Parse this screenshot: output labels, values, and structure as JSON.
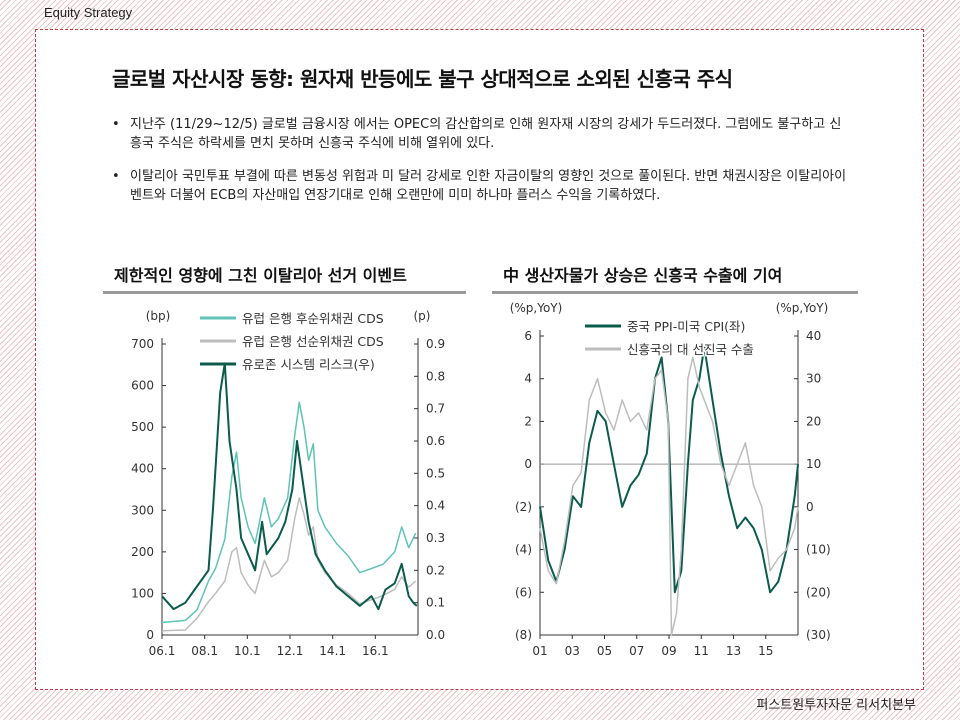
{
  "header": {
    "section_label": "Equity Strategy"
  },
  "page": {
    "title": "글로벌 자산시장 동향: 원자재 반등에도 불구 상대적으로 소외된 신흥국 주식",
    "bullets": [
      {
        "marker": "•",
        "text": "지난주 (11/29~12/5) 글로벌 금융시장 에서는 OPEC의 감산합의로 인해 원자재 시장의 강세가 두드러졌다. 그럼에도 불구하고 신흥국 주식은 하락세를 면치 못하며 신흥국 주식에 비해 열위에 있다."
      },
      {
        "marker": "•",
        "text": "이탈리아 국민투표 부결에 따른 변동성 위험과 미 달러 강세로 인한 자금이탈의 영향인 것으로 풀이된다. 반면 채권시장은 이탈리아이벤트와 더불어 ECB의 자산매입 연장기대로 인해 오랜만에 미미 하나마 플러스 수익을 기록하였다."
      }
    ]
  },
  "footer": {
    "source_label": "퍼스트원투자자문 리서치본부"
  },
  "chart_data": [
    {
      "type": "line",
      "title": "제한적인 영향에 그친 이탈리아 선거 이벤트",
      "left_unit": "(bp)",
      "right_unit": "(p)",
      "x_ticks": [
        "06.1",
        "08.1",
        "10.1",
        "12.1",
        "14.1",
        "16.1"
      ],
      "x_range": [
        2006.0,
        2017.0
      ],
      "ylim_left": [
        0,
        700
      ],
      "yticks_left": [
        "0",
        "100",
        "200",
        "300",
        "400",
        "500",
        "600",
        "700"
      ],
      "ylim_right": [
        0,
        0.9
      ],
      "yticks_right": [
        "0.0",
        "0.1",
        "0.2",
        "0.3",
        "0.4",
        "0.5",
        "0.6",
        "0.7",
        "0.8",
        "0.9"
      ],
      "legend_position": "top-left",
      "series": [
        {
          "name": "유럽 은행 후순위채권 CDS",
          "color": "#5ec4b6",
          "axis": "left",
          "width": 1.5,
          "x": [
            2006.0,
            2007.0,
            2007.5,
            2008.0,
            2008.3,
            2008.7,
            2009.0,
            2009.2,
            2009.4,
            2009.7,
            2010.0,
            2010.4,
            2010.7,
            2011.0,
            2011.4,
            2011.7,
            2011.9,
            2012.1,
            2012.3,
            2012.5,
            2012.7,
            2013.0,
            2013.5,
            2014.0,
            2014.5,
            2015.0,
            2015.5,
            2016.0,
            2016.3,
            2016.6,
            2016.9
          ],
          "y": [
            30,
            35,
            60,
            130,
            160,
            230,
            380,
            440,
            330,
            260,
            220,
            330,
            260,
            280,
            330,
            480,
            560,
            500,
            420,
            460,
            300,
            260,
            220,
            190,
            150,
            160,
            170,
            200,
            260,
            210,
            245
          ]
        },
        {
          "name": "유럽 은행 선순위채권 CDS",
          "color": "#bdbdbd",
          "axis": "left",
          "width": 1.5,
          "x": [
            2006.0,
            2007.0,
            2007.5,
            2008.0,
            2008.3,
            2008.7,
            2009.0,
            2009.2,
            2009.4,
            2009.7,
            2010.0,
            2010.4,
            2010.7,
            2011.0,
            2011.4,
            2011.7,
            2011.9,
            2012.1,
            2012.3,
            2012.5,
            2012.7,
            2013.0,
            2013.5,
            2014.0,
            2014.5,
            2015.0,
            2015.5,
            2016.0,
            2016.3,
            2016.6,
            2016.9
          ],
          "y": [
            10,
            12,
            40,
            80,
            100,
            130,
            200,
            210,
            150,
            120,
            100,
            180,
            140,
            150,
            180,
            280,
            330,
            290,
            240,
            260,
            180,
            150,
            120,
            100,
            75,
            85,
            95,
            110,
            140,
            115,
            130
          ]
        },
        {
          "name": "유로존 시스템 리스크(우)",
          "color": "#0b5c4c",
          "axis": "right",
          "width": 2,
          "x": [
            2006.0,
            2006.5,
            2007.0,
            2007.5,
            2008.0,
            2008.2,
            2008.5,
            2008.7,
            2008.9,
            2009.2,
            2009.4,
            2009.7,
            2010.0,
            2010.3,
            2010.5,
            2010.8,
            2011.0,
            2011.3,
            2011.6,
            2011.8,
            2012.0,
            2012.3,
            2012.6,
            2013.0,
            2013.5,
            2014.0,
            2014.5,
            2015.0,
            2015.3,
            2015.6,
            2016.0,
            2016.3,
            2016.6,
            2016.8,
            2016.95
          ],
          "y": [
            0.12,
            0.08,
            0.1,
            0.15,
            0.2,
            0.4,
            0.75,
            0.84,
            0.6,
            0.45,
            0.3,
            0.25,
            0.2,
            0.35,
            0.25,
            0.28,
            0.3,
            0.35,
            0.45,
            0.6,
            0.5,
            0.35,
            0.25,
            0.2,
            0.15,
            0.12,
            0.09,
            0.12,
            0.08,
            0.14,
            0.16,
            0.22,
            0.12,
            0.1,
            0.09
          ]
        }
      ]
    },
    {
      "type": "line",
      "title": "中 생산자물가 상승은 신흥국 수출에 기여",
      "left_unit": "(%p,YoY)",
      "right_unit": "(%p,YoY)",
      "x_ticks": [
        "01",
        "03",
        "05",
        "07",
        "09",
        "11",
        "13",
        "15"
      ],
      "x_range": [
        2001.0,
        2016.7
      ],
      "ylim_left": [
        -8,
        6
      ],
      "yticks_left": [
        "(8)",
        "(6)",
        "(4)",
        "(2)",
        "0",
        "2",
        "4",
        "6"
      ],
      "ylim_right": [
        -30,
        40
      ],
      "yticks_right": [
        "(30)",
        "(20)",
        "(10)",
        "0",
        "10",
        "20",
        "30",
        "40"
      ],
      "legend_position": "top-center",
      "series": [
        {
          "name": "중국 PPI-미국 CPI(좌)",
          "color": "#0b5c4c",
          "axis": "left",
          "width": 2,
          "x": [
            2001.0,
            2001.5,
            2002.0,
            2002.5,
            2003.0,
            2003.5,
            2004.0,
            2004.5,
            2005.0,
            2005.5,
            2006.0,
            2006.5,
            2007.0,
            2007.5,
            2008.0,
            2008.4,
            2008.8,
            2009.2,
            2009.6,
            2010.0,
            2010.3,
            2010.7,
            2011.0,
            2011.5,
            2012.0,
            2012.5,
            2013.0,
            2013.5,
            2014.0,
            2014.5,
            2015.0,
            2015.5,
            2016.0,
            2016.5,
            2016.7
          ],
          "y": [
            -2,
            -4.5,
            -5.5,
            -4,
            -1.5,
            -2,
            1,
            2.5,
            2,
            0,
            -2,
            -1,
            -0.5,
            0.5,
            4,
            5,
            2,
            -6,
            -5,
            0,
            3,
            4,
            5.5,
            3,
            0.5,
            -1.5,
            -3,
            -2.5,
            -3,
            -4,
            -6,
            -5.5,
            -4,
            -1.5,
            0
          ]
        },
        {
          "name": "신흥국의 대 선진국 수출",
          "color": "#bdbdbd",
          "axis": "right",
          "width": 1.5,
          "x": [
            2001.0,
            2001.5,
            2002.0,
            2002.5,
            2003.0,
            2003.5,
            2004.0,
            2004.5,
            2005.0,
            2005.5,
            2006.0,
            2006.5,
            2007.0,
            2007.5,
            2008.0,
            2008.4,
            2008.8,
            2009.0,
            2009.3,
            2009.6,
            2010.0,
            2010.3,
            2010.7,
            2011.0,
            2011.5,
            2012.0,
            2012.5,
            2013.0,
            2013.5,
            2014.0,
            2014.5,
            2015.0,
            2015.5,
            2016.0,
            2016.5,
            2016.7
          ],
          "y": [
            -5,
            -15,
            -18,
            -8,
            5,
            8,
            25,
            30,
            22,
            18,
            25,
            20,
            22,
            18,
            30,
            32,
            20,
            -30,
            -25,
            -10,
            30,
            35,
            28,
            25,
            20,
            10,
            5,
            10,
            15,
            5,
            0,
            -15,
            -12,
            -10,
            -5,
            0
          ]
        }
      ]
    }
  ]
}
